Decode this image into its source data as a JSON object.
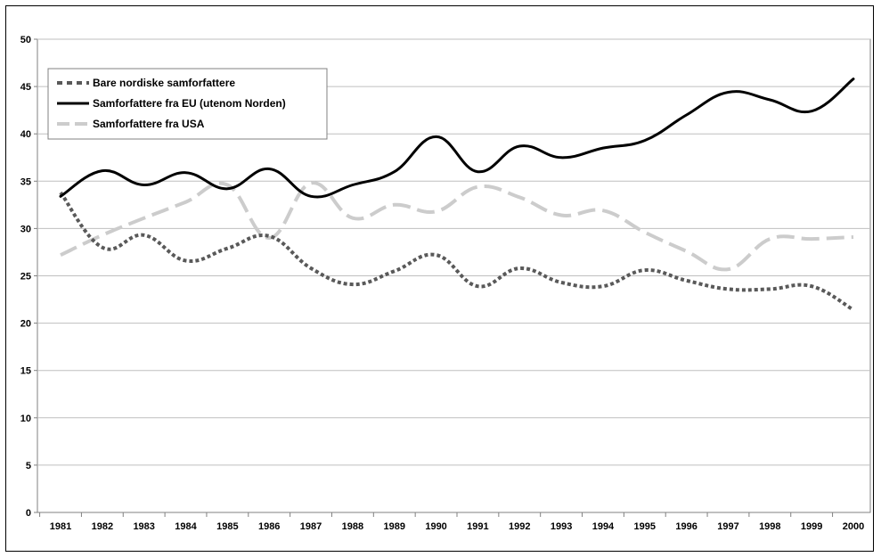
{
  "chart_data": {
    "type": "line",
    "title": "",
    "xlabel": "",
    "ylabel": "",
    "categories": [
      "1981",
      "1982",
      "1983",
      "1984",
      "1985",
      "1986",
      "1987",
      "1988",
      "1989",
      "1990",
      "1991",
      "1992",
      "1993",
      "1994",
      "1995",
      "1996",
      "1997",
      "1998",
      "1999",
      "2000"
    ],
    "ylim": [
      0,
      50
    ],
    "yticks": [
      0,
      5,
      10,
      15,
      20,
      25,
      30,
      35,
      40,
      45,
      50
    ],
    "grid": true,
    "legend_position": "top-left",
    "series": [
      {
        "name": "Bare nordiske samforfattere",
        "color": "#595959",
        "style": "dotted",
        "values": [
          33.8,
          28.0,
          29.3,
          26.6,
          27.9,
          29.2,
          25.8,
          24.1,
          25.5,
          27.2,
          23.9,
          25.8,
          24.3,
          23.9,
          25.6,
          24.5,
          23.6,
          23.6,
          23.9,
          21.4
        ]
      },
      {
        "name": "Samforfattere fra EU (utenom Norden)",
        "color": "#000000",
        "style": "solid",
        "values": [
          33.4,
          36.1,
          34.6,
          35.9,
          34.2,
          36.3,
          33.4,
          34.6,
          36.0,
          39.7,
          36.0,
          38.7,
          37.5,
          38.5,
          39.3,
          42.0,
          44.4,
          43.6,
          42.4,
          45.8
        ]
      },
      {
        "name": "Samforfattere fra USA",
        "color": "#cccccc",
        "style": "dashed",
        "values": [
          27.2,
          29.3,
          31.1,
          32.8,
          34.6,
          29.0,
          34.8,
          31.1,
          32.5,
          31.8,
          34.4,
          33.3,
          31.4,
          31.9,
          29.6,
          27.6,
          25.7,
          28.9,
          28.9,
          29.1
        ]
      }
    ]
  }
}
